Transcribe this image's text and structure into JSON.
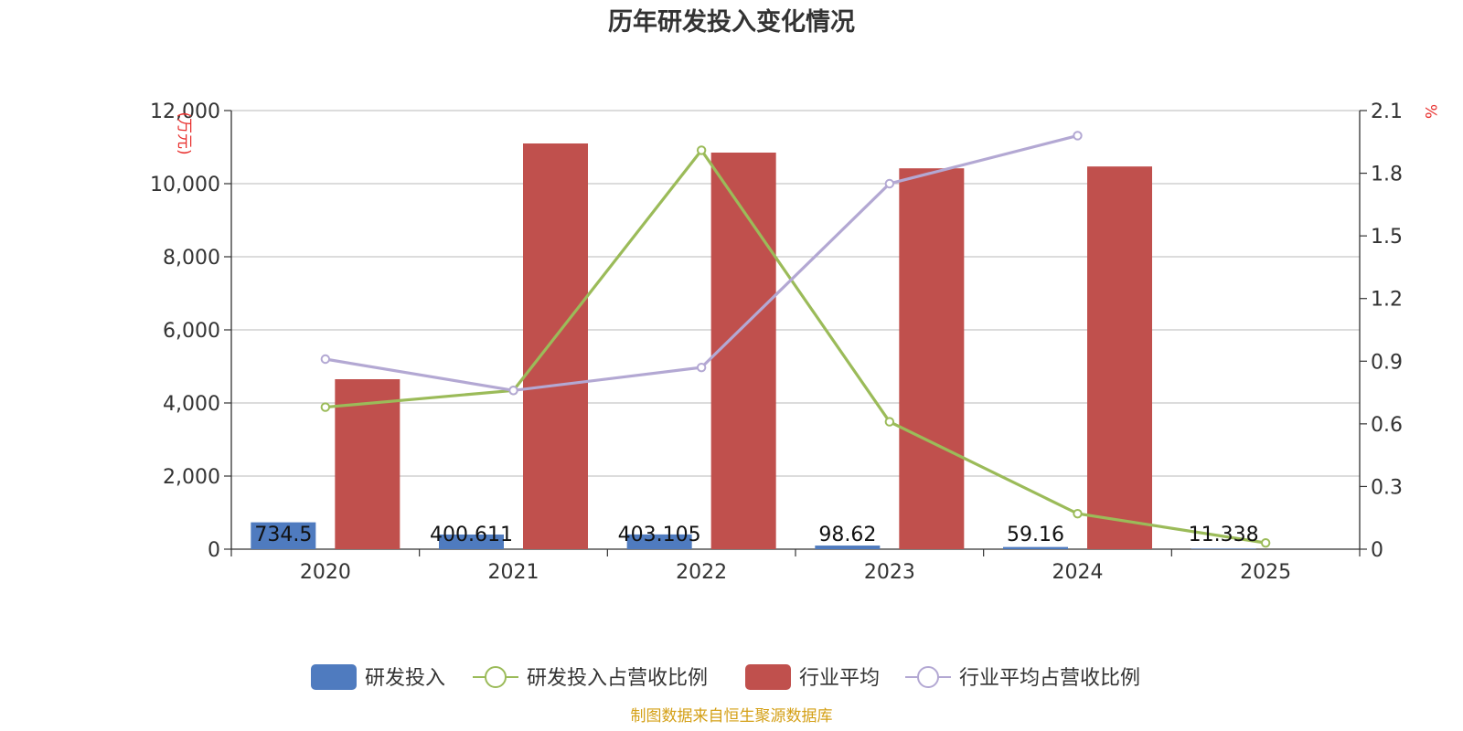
{
  "chart_data": {
    "type": "bar",
    "title": "历年研发投入变化情况",
    "categories": [
      "2020",
      "2021",
      "2022",
      "2023",
      "2024",
      "2025"
    ],
    "y_left": {
      "unit": "(万元)",
      "min": 0,
      "max": 12000,
      "ticks": [
        "0",
        "2,000",
        "4,000",
        "6,000",
        "8,000",
        "10,000",
        "12,000"
      ]
    },
    "y_right": {
      "unit": "%",
      "min": 0,
      "max": 2.1,
      "ticks": [
        "0",
        "0.3",
        "0.6",
        "0.9",
        "1.2",
        "1.5",
        "1.8",
        "2.1"
      ]
    },
    "series": [
      {
        "name": "研发投入",
        "type": "bar",
        "axis": "left",
        "color": "#4f7bbf",
        "values": [
          734.5,
          400.611,
          403.105,
          98.62,
          59.16,
          11.338
        ],
        "labels": [
          "734.5",
          "400.611",
          "403.105",
          "98.62",
          "59.16",
          "11.338"
        ]
      },
      {
        "name": "研发投入占营收比例",
        "type": "line",
        "axis": "right",
        "color": "#9bbb59",
        "values": [
          0.68,
          0.76,
          1.91,
          0.61,
          0.17,
          0.03
        ]
      },
      {
        "name": "行业平均",
        "type": "bar",
        "axis": "left",
        "color": "#c0504d",
        "values": [
          4650,
          11100,
          10850,
          10420,
          10470,
          null
        ]
      },
      {
        "name": "行业平均占营收比例",
        "type": "line",
        "axis": "right",
        "color": "#b3a8d3",
        "values": [
          0.91,
          0.76,
          0.87,
          1.75,
          1.98,
          null
        ]
      }
    ]
  },
  "source_note": "制图数据来自恒生聚源数据库"
}
